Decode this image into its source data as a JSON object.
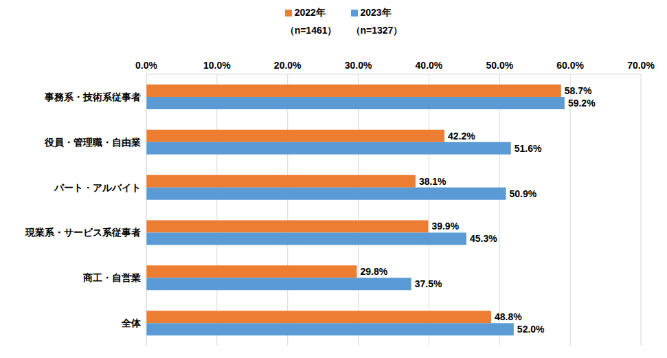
{
  "chart_data": {
    "type": "bar",
    "orientation": "horizontal",
    "categories": [
      "事務系・技術系従事者",
      "役員・管理職・自由業",
      "パート・アルバイト",
      "現業系・サービス系従事者",
      "商工・自営業",
      "全体"
    ],
    "series": [
      {
        "name": "2022年",
        "color": "#ed7d31",
        "values": [
          58.7,
          42.2,
          38.1,
          39.9,
          29.8,
          48.8
        ],
        "value_labels": [
          "58.7%",
          "42.2%",
          "38.1%",
          "39.9%",
          "29.8%",
          "48.8%"
        ]
      },
      {
        "name": "2023年",
        "color": "#5b9bd5",
        "values": [
          59.2,
          51.6,
          50.9,
          45.3,
          37.5,
          52.0
        ],
        "value_labels": [
          "59.2%",
          "51.6%",
          "50.9%",
          "45.3%",
          "37.5%",
          "52.0%"
        ]
      }
    ],
    "annotations": [
      "（n=1461）",
      "（n=1327）"
    ],
    "xlim": [
      0,
      70
    ],
    "xticks": [
      {
        "value": 0,
        "label": "0.0%"
      },
      {
        "value": 10,
        "label": "10.0%"
      },
      {
        "value": 20,
        "label": "20.0%"
      },
      {
        "value": 30,
        "label": "30.0%"
      },
      {
        "value": 40,
        "label": "40.0%"
      },
      {
        "value": 50,
        "label": "50.0%"
      },
      {
        "value": 60,
        "label": "60.0%"
      },
      {
        "value": 70,
        "label": "70.0%"
      }
    ],
    "grid": true,
    "data_labels": true,
    "legend": "top"
  }
}
